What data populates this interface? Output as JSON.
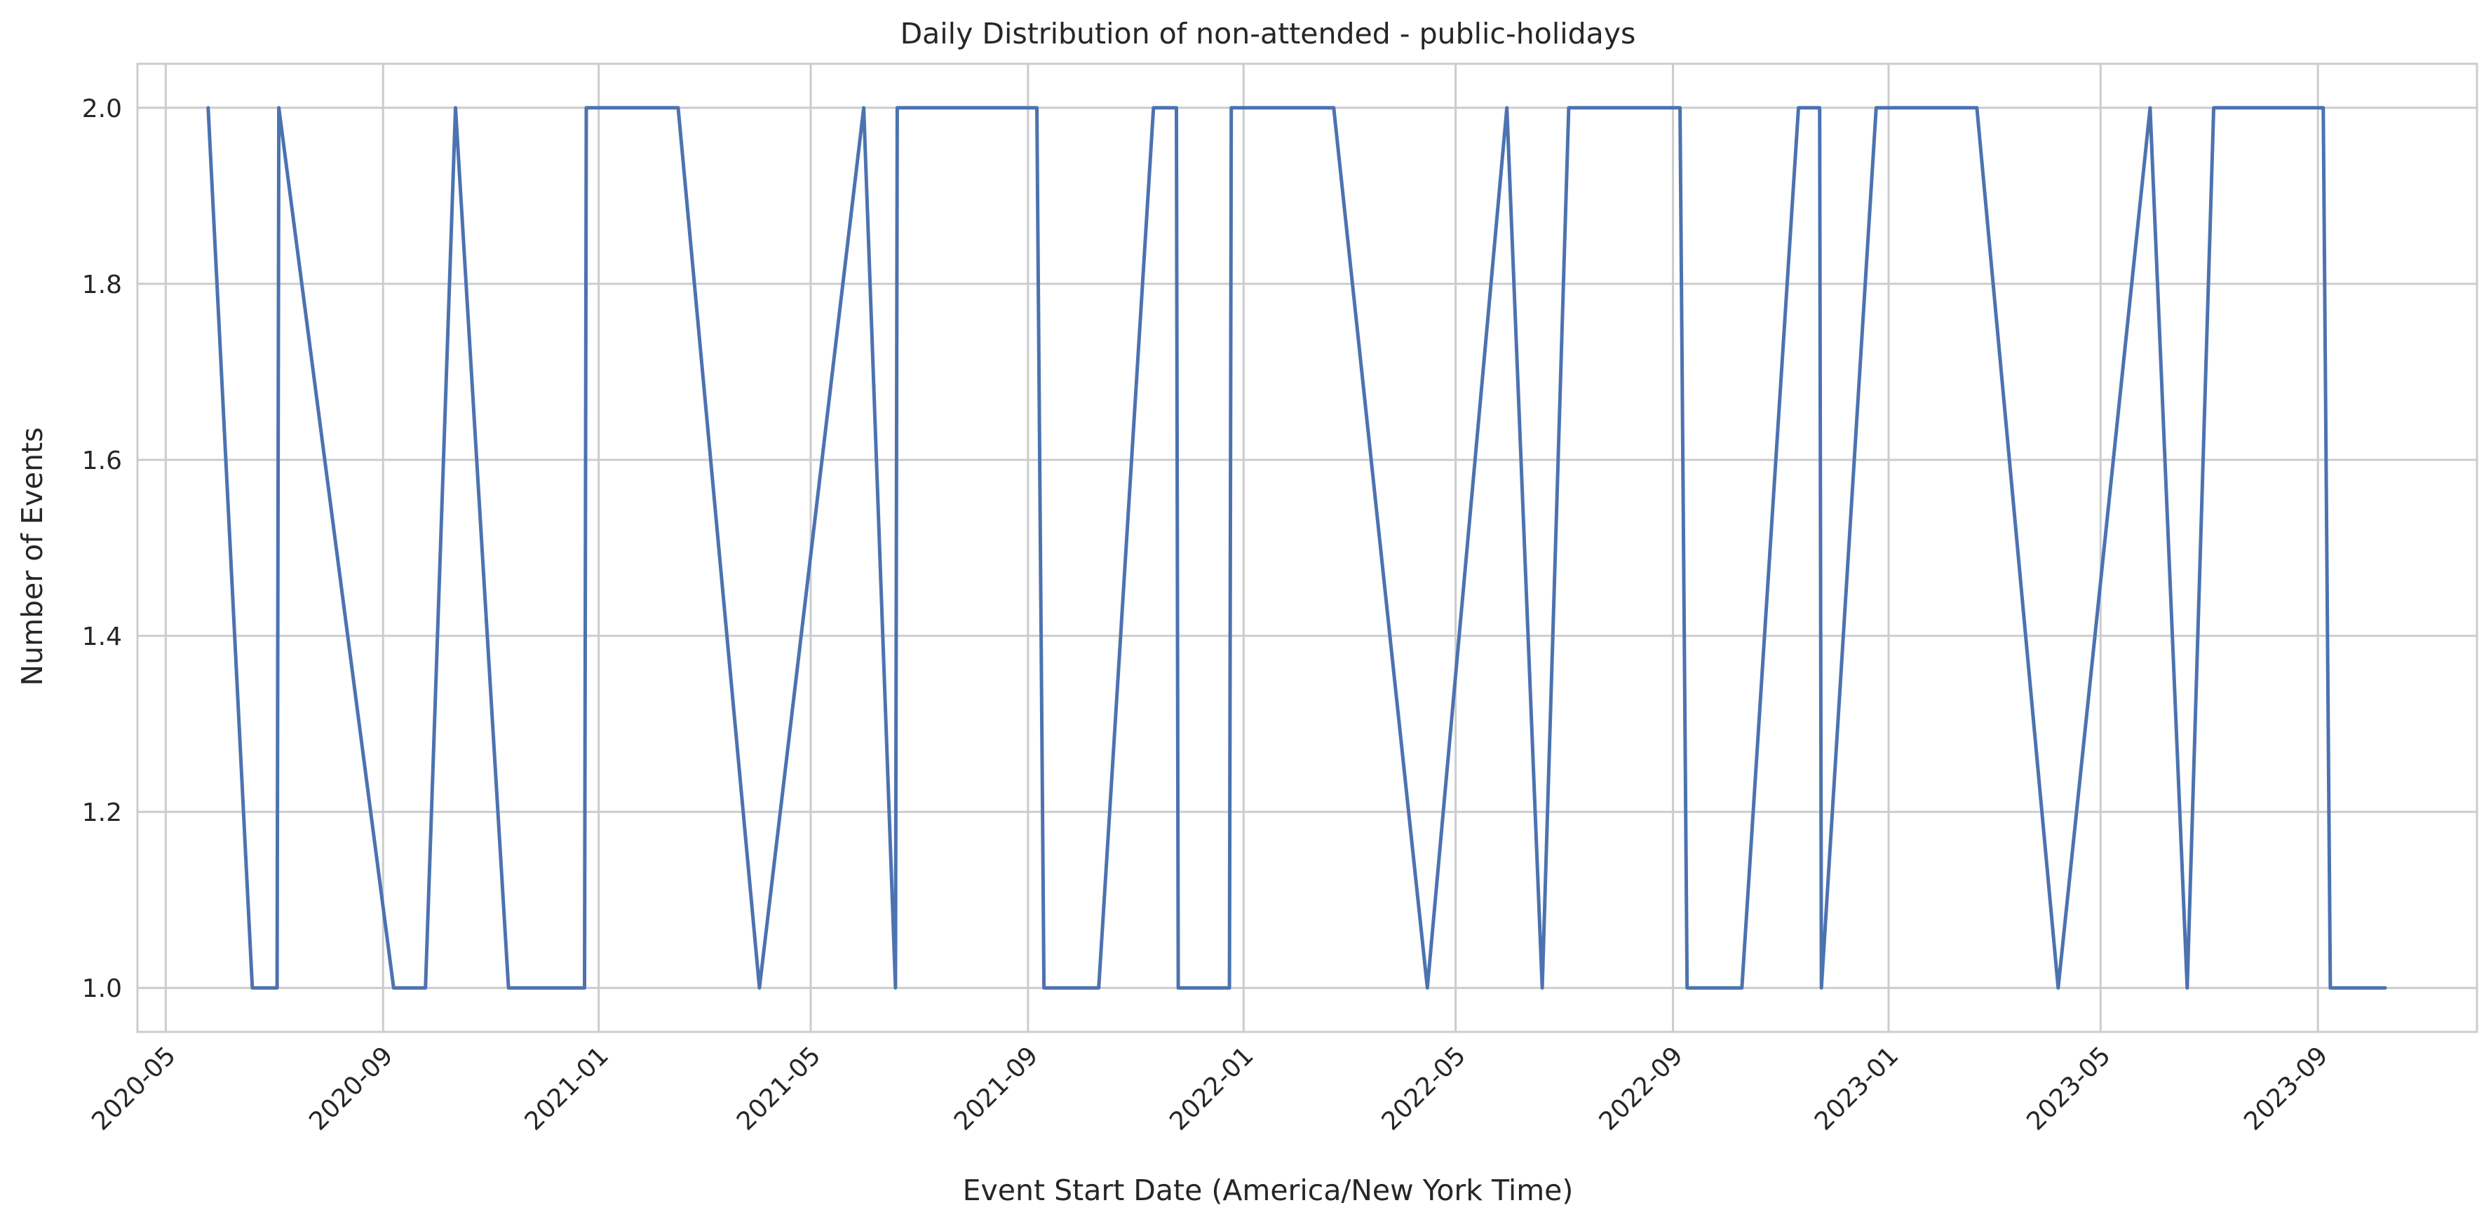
{
  "chart_data": {
    "type": "line",
    "title": "Daily Distribution of non-attended - public-holidays",
    "xlabel": "Event Start Date (America/New York Time)",
    "ylabel": "Number of Events",
    "xlim": [
      "2020-04-15",
      "2023-11-30"
    ],
    "ylim": [
      0.95,
      2.05
    ],
    "x_ticks": [
      "2020-05",
      "2020-09",
      "2021-01",
      "2021-05",
      "2021-09",
      "2022-01",
      "2022-05",
      "2022-09",
      "2023-01",
      "2023-05",
      "2023-09"
    ],
    "y_ticks": [
      "1.0",
      "1.2",
      "1.4",
      "1.6",
      "1.8",
      "2.0"
    ],
    "grid": true,
    "legend": "none",
    "series": [
      {
        "color": "#4c72b0",
        "points": [
          [
            "2020-05-25",
            2
          ],
          [
            "2020-06-19",
            1
          ],
          [
            "2020-07-03",
            1
          ],
          [
            "2020-07-04",
            2
          ],
          [
            "2020-09-07",
            1
          ],
          [
            "2020-09-25",
            1
          ],
          [
            "2020-10-12",
            2
          ],
          [
            "2020-11-11",
            1
          ],
          [
            "2020-11-26",
            1
          ],
          [
            "2020-12-24",
            1
          ],
          [
            "2020-12-25",
            2
          ],
          [
            "2021-01-01",
            2
          ],
          [
            "2021-01-18",
            2
          ],
          [
            "2021-02-15",
            2
          ],
          [
            "2021-04-02",
            1
          ],
          [
            "2021-05-31",
            2
          ],
          [
            "2021-06-18",
            1
          ],
          [
            "2021-06-19",
            2
          ],
          [
            "2021-07-04",
            2
          ],
          [
            "2021-07-05",
            2
          ],
          [
            "2021-09-06",
            2
          ],
          [
            "2021-09-10",
            1
          ],
          [
            "2021-10-11",
            1
          ],
          [
            "2021-11-11",
            2
          ],
          [
            "2021-11-24",
            2
          ],
          [
            "2021-11-25",
            1
          ],
          [
            "2021-12-24",
            1
          ],
          [
            "2021-12-25",
            2
          ],
          [
            "2022-01-17",
            2
          ],
          [
            "2022-02-21",
            2
          ],
          [
            "2022-04-15",
            1
          ],
          [
            "2022-05-30",
            2
          ],
          [
            "2022-06-19",
            1
          ],
          [
            "2022-07-04",
            2
          ],
          [
            "2022-09-05",
            2
          ],
          [
            "2022-09-09",
            1
          ],
          [
            "2022-10-10",
            1
          ],
          [
            "2022-11-11",
            2
          ],
          [
            "2022-11-23",
            2
          ],
          [
            "2022-11-24",
            1
          ],
          [
            "2022-12-25",
            2
          ],
          [
            "2023-01-02",
            2
          ],
          [
            "2023-01-16",
            2
          ],
          [
            "2023-02-20",
            2
          ],
          [
            "2023-04-07",
            1
          ],
          [
            "2023-05-29",
            2
          ],
          [
            "2023-06-19",
            1
          ],
          [
            "2023-07-04",
            2
          ],
          [
            "2023-09-04",
            2
          ],
          [
            "2023-09-08",
            1
          ],
          [
            "2023-10-09",
            1
          ]
        ]
      }
    ]
  }
}
